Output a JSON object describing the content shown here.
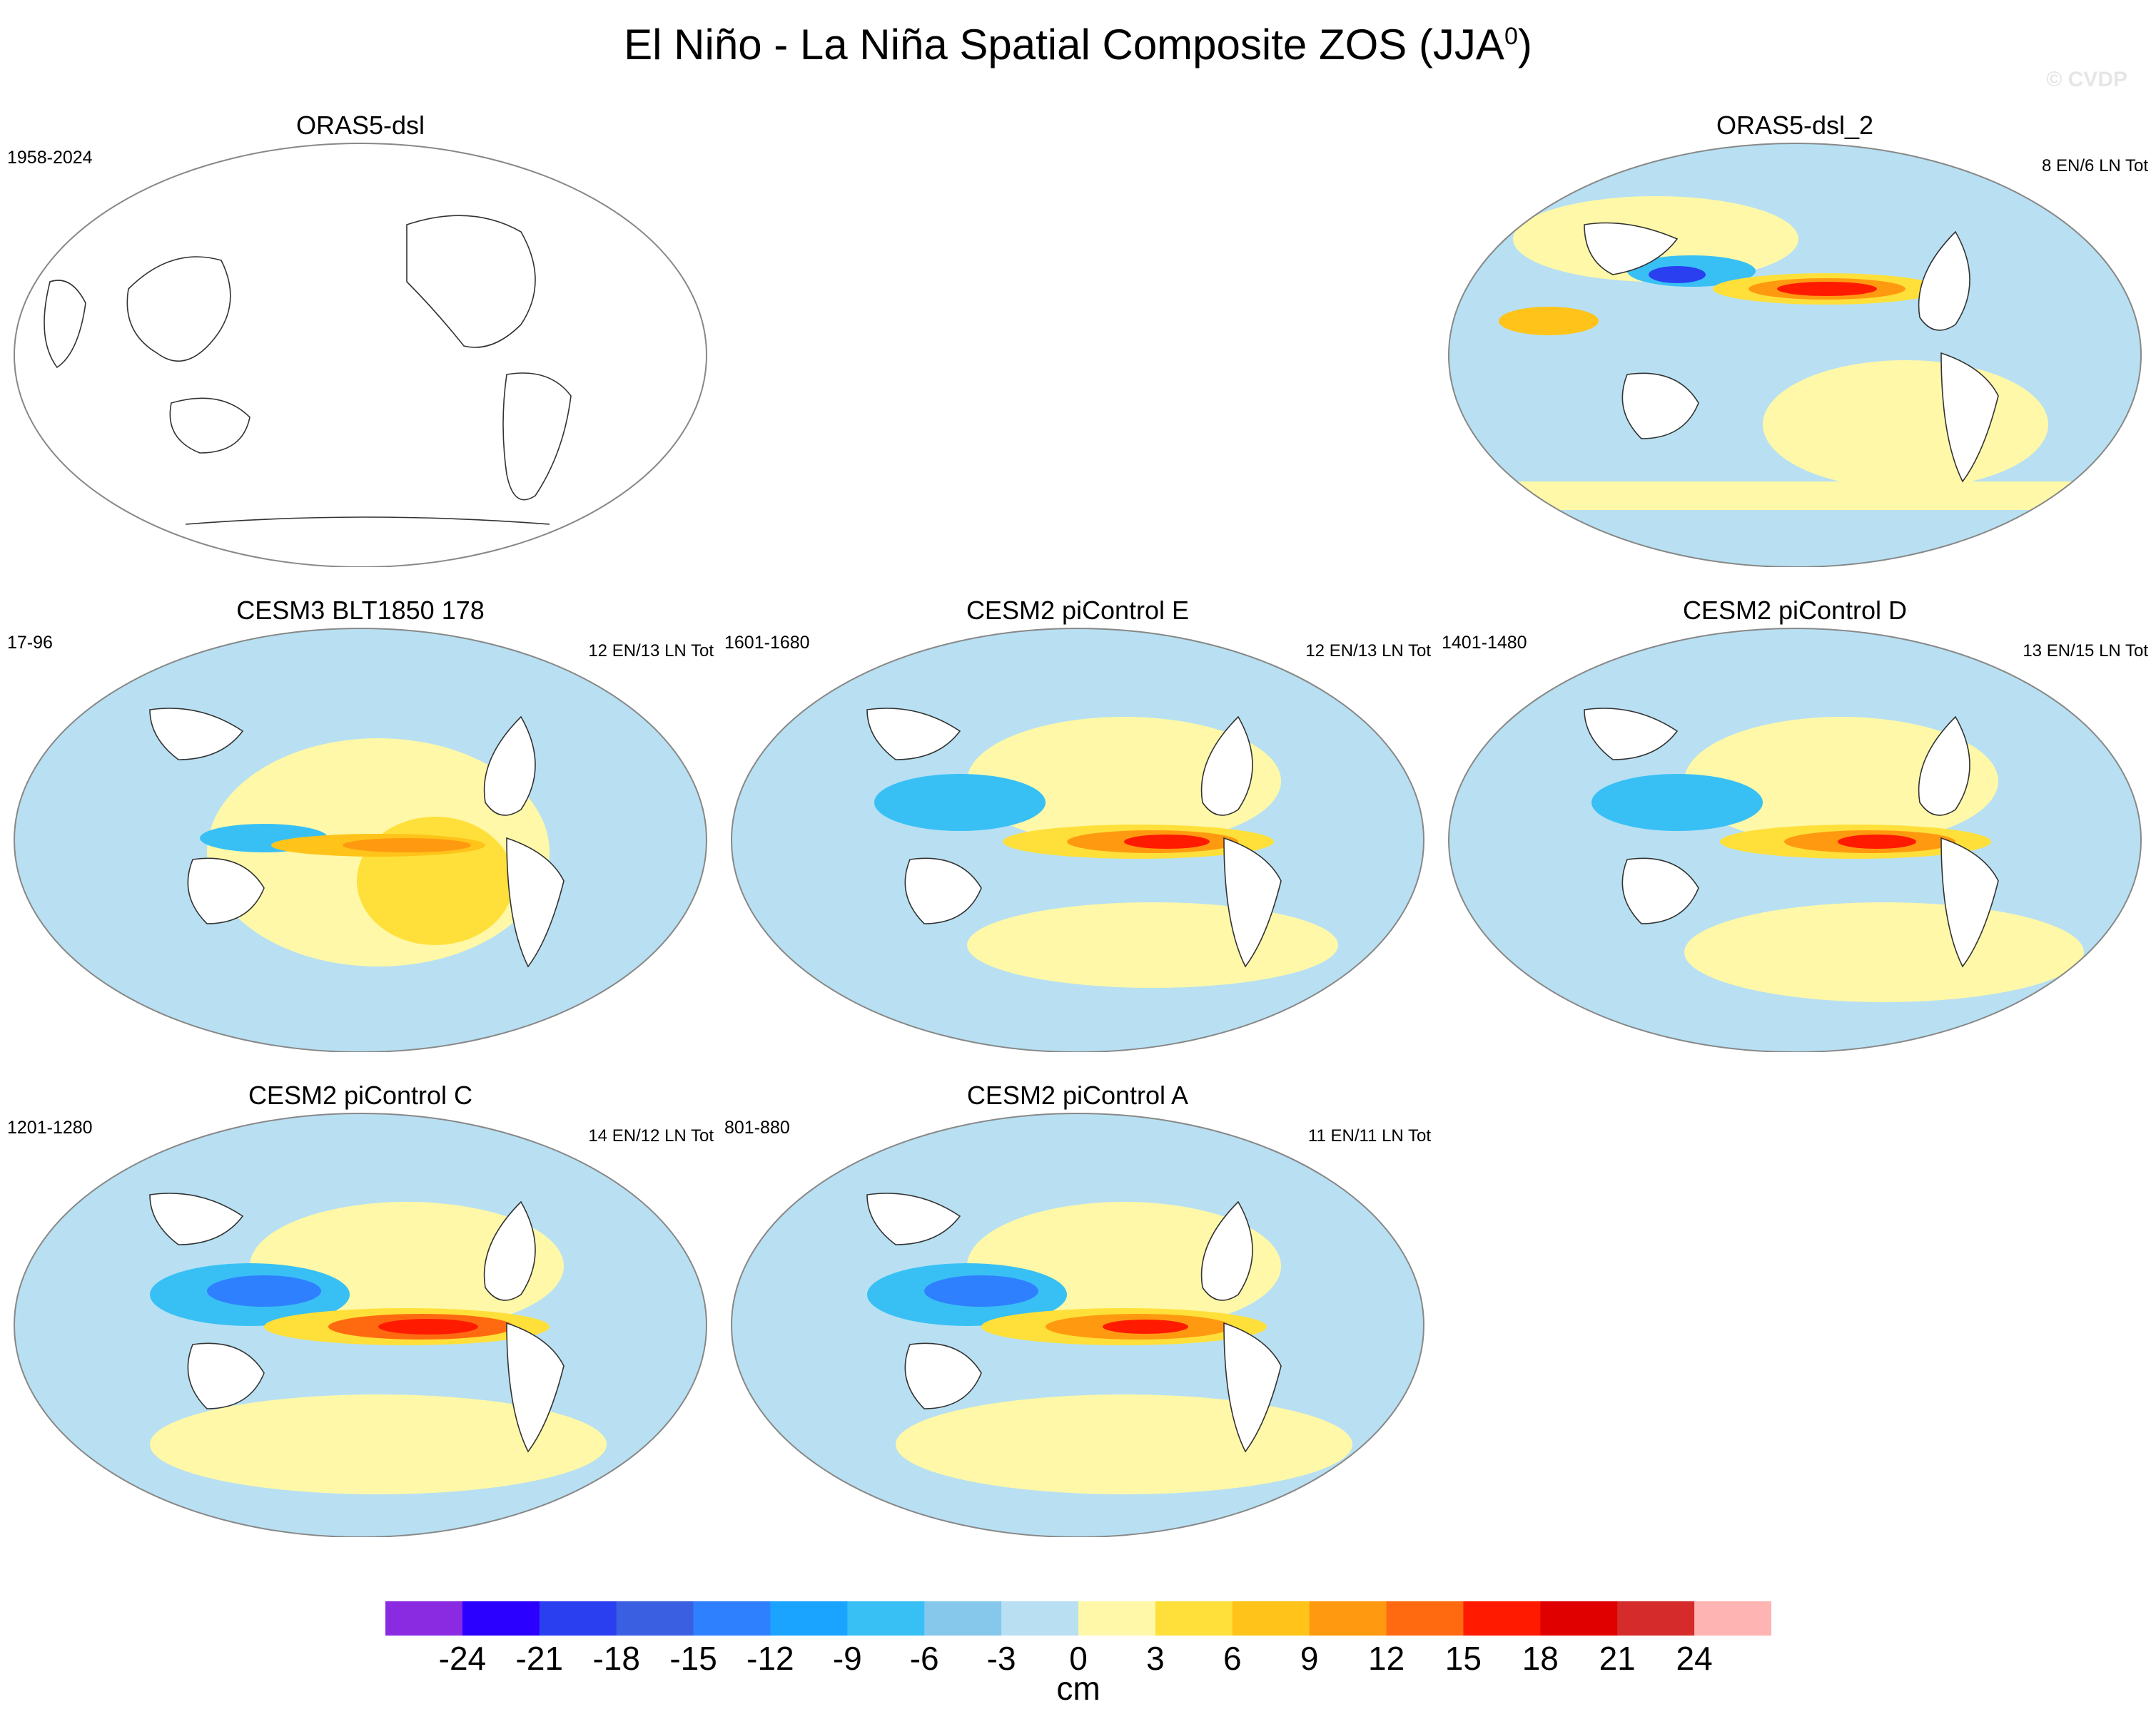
{
  "title": "El Niño - La Niña Spatial Composite ZOS (JJA",
  "title_sup": "0",
  "title_close": ")",
  "watermark": "© CVDP",
  "chart_data": {
    "type": "heatmap",
    "variable": "ZOS",
    "season": "JJA",
    "units": "cm",
    "colorbar": {
      "levels": [
        "-24",
        "-21",
        "-18",
        "-15",
        "-12",
        "-9",
        "-6",
        "-3",
        "0",
        "3",
        "6",
        "9",
        "12",
        "15",
        "18",
        "21",
        "24"
      ],
      "colors": [
        "#8a2be2",
        "#2b00ff",
        "#2a3ff0",
        "#3a5fe0",
        "#2f80ff",
        "#1aa3ff",
        "#38c0f5",
        "#86c8ec",
        "#b8e0f2",
        "#fff8a8",
        "#ffe03a",
        "#ffc31a",
        "#ff9a10",
        "#ff6a10",
        "#ff1a00",
        "#e00000",
        "#d52b2b",
        "#ffb4b4"
      ]
    },
    "panels": [
      {
        "id": "orasdsl",
        "title": "ORAS5-dsl",
        "period": "1958-2024",
        "counts": "",
        "empty": true
      },
      {
        "id": "orasdsl2",
        "title": "ORAS5-dsl_2",
        "period": "",
        "counts": "8 EN/6 LN Tot",
        "empty": false,
        "peak_positive": 18,
        "peak_negative": -21
      },
      {
        "id": "cesm3",
        "title": "CESM3 BLT1850 178",
        "period": "17-96",
        "counts": "12 EN/13 LN Tot",
        "empty": false,
        "peak_positive": 12,
        "peak_negative": -12
      },
      {
        "id": "cesm2e",
        "title": "CESM2 piControl E",
        "period": "1601-1680",
        "counts": "12 EN/13 LN Tot",
        "empty": false,
        "peak_positive": 15,
        "peak_negative": -12
      },
      {
        "id": "cesm2d",
        "title": "CESM2 piControl D",
        "period": "1401-1480",
        "counts": "13 EN/15 LN Tot",
        "empty": false,
        "peak_positive": 15,
        "peak_negative": -12
      },
      {
        "id": "cesm2c",
        "title": "CESM2 piControl C",
        "period": "1201-1280",
        "counts": "14 EN/12 LN Tot",
        "empty": false,
        "peak_positive": 18,
        "peak_negative": -12
      },
      {
        "id": "cesm2a",
        "title": "CESM2 piControl A",
        "period": "801-880",
        "counts": "11 EN/11 LN Tot",
        "empty": false,
        "peak_positive": 15,
        "peak_negative": -12
      }
    ]
  }
}
